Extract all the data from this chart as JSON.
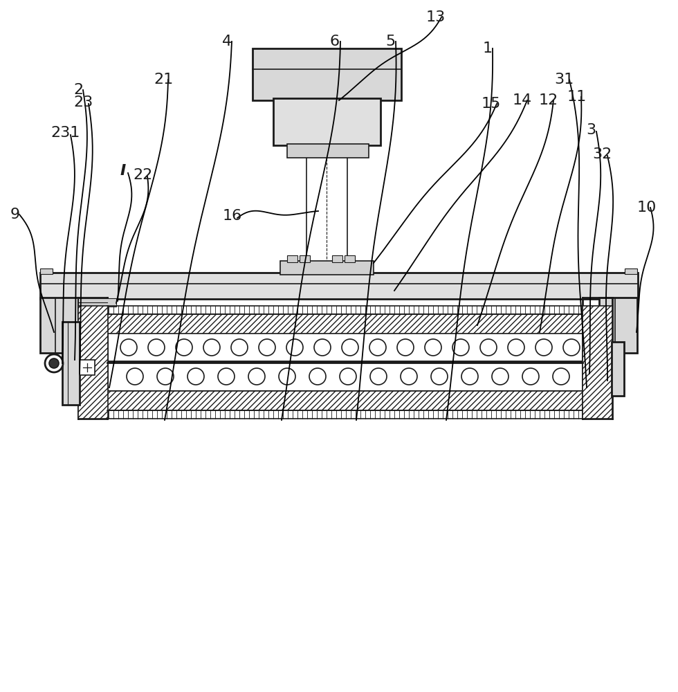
{
  "bg_color": "#ffffff",
  "line_color": "#1a1a1a",
  "gray_light": "#e8e8e8",
  "gray_med": "#d0d0d0",
  "gray_dark": "#b0b0b0"
}
